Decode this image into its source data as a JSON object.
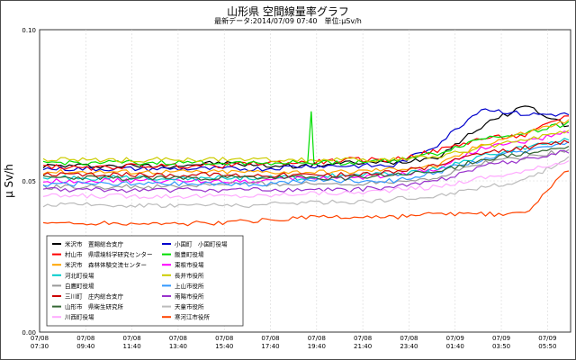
{
  "chart_data": {
    "type": "line",
    "title": "山形県 空間線量率グラフ",
    "subtitle": "最新データ:2014/07/09 07:40　単位:μSv/h",
    "ylabel": "μ Sv/h",
    "ylim": [
      0,
      0.1
    ],
    "y_ticks": [
      "0.00",
      "0.05",
      "0.10"
    ],
    "x_ticks": [
      [
        "07/08",
        "07:30"
      ],
      [
        "07/08",
        "09:40"
      ],
      [
        "07/08",
        "11:40"
      ],
      [
        "07/08",
        "13:40"
      ],
      [
        "07/08",
        "15:40"
      ],
      [
        "07/08",
        "17:40"
      ],
      [
        "07/08",
        "19:40"
      ],
      [
        "07/08",
        "21:40"
      ],
      [
        "07/08",
        "23:40"
      ],
      [
        "07/09",
        "01:40"
      ],
      [
        "07/09",
        "03:50"
      ],
      [
        "07/09",
        "05:50"
      ]
    ],
    "grid": true,
    "legend_position": "bottom-left",
    "series": [
      {
        "name": "米沢市　置賜総合支庁",
        "color": "#000000",
        "values": [
          0.055,
          0.055,
          0.055,
          0.055,
          0.056,
          0.055,
          0.055,
          0.056,
          0.056,
          0.058,
          0.068,
          0.075,
          0.068
        ]
      },
      {
        "name": "小国町　小国町役場",
        "color": "#0000cc",
        "values": [
          0.054,
          0.054,
          0.054,
          0.054,
          0.054,
          0.054,
          0.055,
          0.055,
          0.055,
          0.062,
          0.074,
          0.072,
          0.072
        ]
      },
      {
        "name": "村山市　県環境科学研究センター",
        "color": "#ff0000",
        "values": [
          0.055,
          0.054,
          0.055,
          0.055,
          0.055,
          0.056,
          0.056,
          0.057,
          0.057,
          0.06,
          0.064,
          0.065,
          0.072
        ]
      },
      {
        "name": "飯豊町役場",
        "color": "#00dd00",
        "values": [
          0.056,
          0.056,
          0.056,
          0.056,
          0.056,
          0.056,
          0.056,
          0.056,
          0.057,
          0.059,
          0.064,
          0.066,
          0.069
        ]
      },
      {
        "name": "米沢市　森林体験交流センター",
        "color": "#ffa500",
        "values": [
          0.053,
          0.053,
          0.053,
          0.053,
          0.053,
          0.053,
          0.053,
          0.053,
          0.054,
          0.055,
          0.062,
          0.066,
          0.07
        ]
      },
      {
        "name": "東根市役場",
        "color": "#ff00ff",
        "values": [
          0.05,
          0.05,
          0.05,
          0.05,
          0.05,
          0.05,
          0.051,
          0.051,
          0.052,
          0.054,
          0.061,
          0.063,
          0.066
        ]
      },
      {
        "name": "河北町役場",
        "color": "#00cccc",
        "values": [
          0.051,
          0.051,
          0.051,
          0.051,
          0.051,
          0.051,
          0.051,
          0.052,
          0.052,
          0.054,
          0.058,
          0.061,
          0.064
        ]
      },
      {
        "name": "長井市役所",
        "color": "#cccc00",
        "values": [
          0.057,
          0.057,
          0.057,
          0.057,
          0.057,
          0.057,
          0.057,
          0.057,
          0.057,
          0.058,
          0.061,
          0.064,
          0.066
        ]
      },
      {
        "name": "白鷹町役場",
        "color": "#999999",
        "values": [
          0.048,
          0.048,
          0.048,
          0.048,
          0.049,
          0.049,
          0.049,
          0.049,
          0.05,
          0.051,
          0.056,
          0.058,
          0.06
        ]
      },
      {
        "name": "上山市役所",
        "color": "#3399ff",
        "values": [
          0.049,
          0.049,
          0.049,
          0.049,
          0.049,
          0.049,
          0.05,
          0.05,
          0.05,
          0.053,
          0.057,
          0.06,
          0.063
        ]
      },
      {
        "name": "三川町　庄内総合支庁",
        "color": "#cc0000",
        "values": [
          0.052,
          0.052,
          0.052,
          0.052,
          0.052,
          0.052,
          0.052,
          0.052,
          0.053,
          0.055,
          0.059,
          0.061,
          0.063
        ]
      },
      {
        "name": "南陽市役所",
        "color": "#9933cc",
        "values": [
          0.047,
          0.047,
          0.047,
          0.047,
          0.047,
          0.047,
          0.047,
          0.047,
          0.048,
          0.05,
          0.055,
          0.057,
          0.06
        ]
      },
      {
        "name": "山形市　県衛生研究所",
        "color": "#336633",
        "values": [
          0.051,
          0.051,
          0.051,
          0.051,
          0.051,
          0.051,
          0.051,
          0.051,
          0.052,
          0.053,
          0.057,
          0.059,
          0.061
        ]
      },
      {
        "name": "天童市役所",
        "color": "#bbbbbb",
        "values": [
          0.042,
          0.042,
          0.042,
          0.042,
          0.042,
          0.042,
          0.043,
          0.043,
          0.044,
          0.045,
          0.048,
          0.05,
          0.058
        ]
      },
      {
        "name": "川西町役場",
        "color": "#ffaaff",
        "values": [
          0.045,
          0.045,
          0.045,
          0.045,
          0.045,
          0.045,
          0.046,
          0.046,
          0.047,
          0.048,
          0.051,
          0.053,
          0.057
        ]
      },
      {
        "name": "寒河江市役所",
        "color": "#ff4400",
        "values": [
          0.036,
          0.036,
          0.036,
          0.036,
          0.036,
          0.037,
          0.038,
          0.038,
          0.038,
          0.039,
          0.039,
          0.039,
          0.054
        ]
      }
    ]
  }
}
